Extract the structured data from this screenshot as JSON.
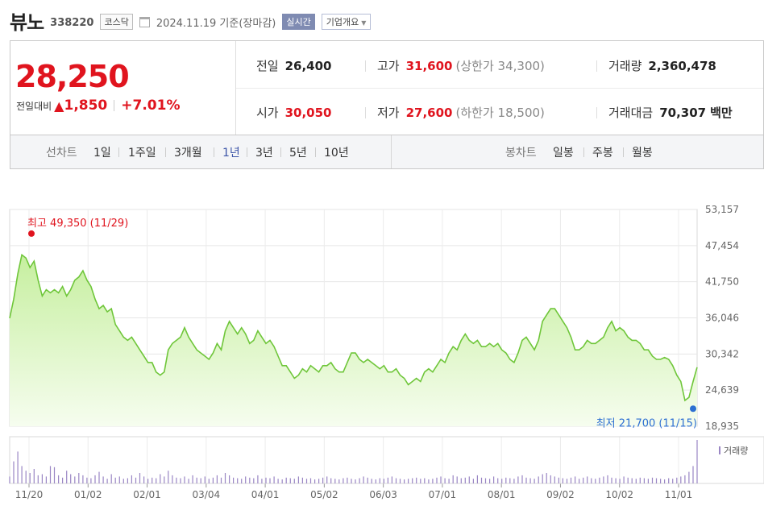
{
  "header": {
    "name": "뷰노",
    "code": "338220",
    "market": "코스닥",
    "date": "2024.11.19",
    "basis": "기준(장마감)",
    "live_button": "실시간",
    "overview_button": "기업개요"
  },
  "quote": {
    "price": "28,250",
    "change_label": "전일대비",
    "change_arrow": "▲",
    "change_amount": "1,850",
    "change_percent": "+7.01%",
    "prev_close_label": "전일",
    "prev_close": "26,400",
    "high_label": "고가",
    "high": "31,600",
    "upper_limit_label": "(상한가",
    "upper_limit": "34,300)",
    "volume_label": "거래량",
    "volume": "2,360,478",
    "open_label": "시가",
    "open": "30,050",
    "low_label": "저가",
    "low": "27,600",
    "lower_limit_label": "(하한가",
    "lower_limit": "18,500)",
    "turnover_label": "거래대금",
    "turnover": "70,307",
    "turnover_unit": "백만"
  },
  "tabs": {
    "line_title": "선차트",
    "line_items": [
      "1일",
      "1주일",
      "3개월",
      "1년",
      "3년",
      "5년",
      "10년"
    ],
    "active": "1년",
    "candle_title": "봉차트",
    "candle_items": [
      "일봉",
      "주봉",
      "월봉"
    ]
  },
  "colors": {
    "up": "#e0141e",
    "line": "#6fc63a",
    "fill_top": "#c6ef9f",
    "fill_bottom": "#f6fdef",
    "low_marker": "#2d6fd2",
    "volume_bar": "#9a86c4"
  },
  "chart_data": {
    "type": "area",
    "x_ticks": [
      "11/20",
      "01/02",
      "02/01",
      "03/04",
      "04/01",
      "05/02",
      "06/03",
      "07/01",
      "08/01",
      "09/02",
      "10/02",
      "11/01"
    ],
    "y_ticks": [
      "53,157",
      "47,454",
      "41,750",
      "36,046",
      "30,342",
      "24,639",
      "18,935"
    ],
    "ylim": [
      18935,
      53157
    ],
    "high_annotation": "최고 49,350 (11/29)",
    "low_annotation": "최저 21,700 (11/15)",
    "volume_legend": "거래량",
    "series": [
      {
        "values": [
          36000,
          39000,
          43000,
          46000,
          45500,
          44000,
          45000,
          42000,
          39500,
          40500,
          40000,
          40500,
          40000,
          41000,
          39500,
          40500,
          42000,
          42500,
          43500,
          42000,
          41000,
          39000,
          37500,
          38000,
          37000,
          37500,
          35000,
          34000,
          33000,
          32500,
          33000,
          32000,
          31000,
          30000,
          29000,
          29000,
          27500,
          27000,
          27500,
          31000,
          32000,
          32500,
          33000,
          34500,
          33000,
          32000,
          31000,
          30500,
          30000,
          29500,
          30500,
          32000,
          31000,
          34000,
          35500,
          34500,
          33500,
          34500,
          33500,
          32000,
          32500,
          34000,
          33000,
          32000,
          32500,
          31500,
          30000,
          28500,
          28500,
          27500,
          26500,
          27000,
          28000,
          27500,
          28500,
          28000,
          27500,
          28500,
          28500,
          29000,
          28000,
          27500,
          27500,
          29000,
          30500,
          30500,
          29500,
          29000,
          29500,
          29000,
          28500,
          28000,
          28500,
          27500,
          27500,
          28000,
          27000,
          26500,
          25500,
          26000,
          26500,
          26000,
          27500,
          28000,
          27500,
          28500,
          29500,
          29000,
          30500,
          31500,
          31000,
          32500,
          33500,
          32500,
          32000,
          32500,
          31500,
          31500,
          32000,
          31500,
          32000,
          31000,
          30500,
          29500,
          29000,
          30500,
          32500,
          33000,
          32000,
          31000,
          32500,
          35500,
          36500,
          37500,
          37500,
          36500,
          35500,
          34500,
          33000,
          31000,
          31000,
          31500,
          32500,
          32000,
          32000,
          32500,
          33000,
          34500,
          35500,
          34000,
          34500,
          34000,
          33000,
          32500,
          32500,
          32000,
          31000,
          31000,
          30000,
          29500,
          29500,
          29800,
          29500,
          28500,
          27000,
          26000,
          23000,
          23500,
          26000,
          28250
        ],
        "high": 49350,
        "low": 21700,
        "volume": [
          12,
          38,
          55,
          30,
          22,
          18,
          25,
          14,
          16,
          12,
          30,
          28,
          14,
          10,
          22,
          16,
          12,
          18,
          14,
          10,
          9,
          14,
          20,
          12,
          8,
          16,
          10,
          12,
          8,
          9,
          14,
          10,
          18,
          12,
          8,
          10,
          9,
          16,
          12,
          22,
          14,
          10,
          9,
          12,
          8,
          14,
          10,
          9,
          12,
          8,
          10,
          14,
          10,
          18,
          14,
          10,
          9,
          8,
          12,
          10,
          9,
          14,
          8,
          10,
          9,
          12,
          8,
          7,
          10,
          9,
          8,
          12,
          10,
          8,
          9,
          7,
          8,
          10,
          12,
          9,
          8,
          7,
          9,
          10,
          8,
          7,
          9,
          12,
          10,
          8,
          7,
          9,
          8,
          10,
          12,
          9,
          8,
          7,
          8,
          9,
          10,
          8,
          9,
          7,
          8,
          10,
          12,
          9,
          8,
          14,
          12,
          9,
          10,
          12,
          8,
          14,
          10,
          9,
          8,
          12,
          9,
          8,
          10,
          9,
          8,
          12,
          14,
          10,
          9,
          8,
          12,
          16,
          18,
          14,
          12,
          10,
          9,
          8,
          10,
          12,
          8,
          10,
          12,
          9,
          8,
          10,
          12,
          14,
          10,
          9,
          8,
          12,
          10,
          9,
          8,
          10,
          9,
          8,
          10,
          9,
          8,
          7,
          9,
          8,
          10,
          12,
          14,
          20,
          30,
          75
        ]
      }
    ]
  }
}
